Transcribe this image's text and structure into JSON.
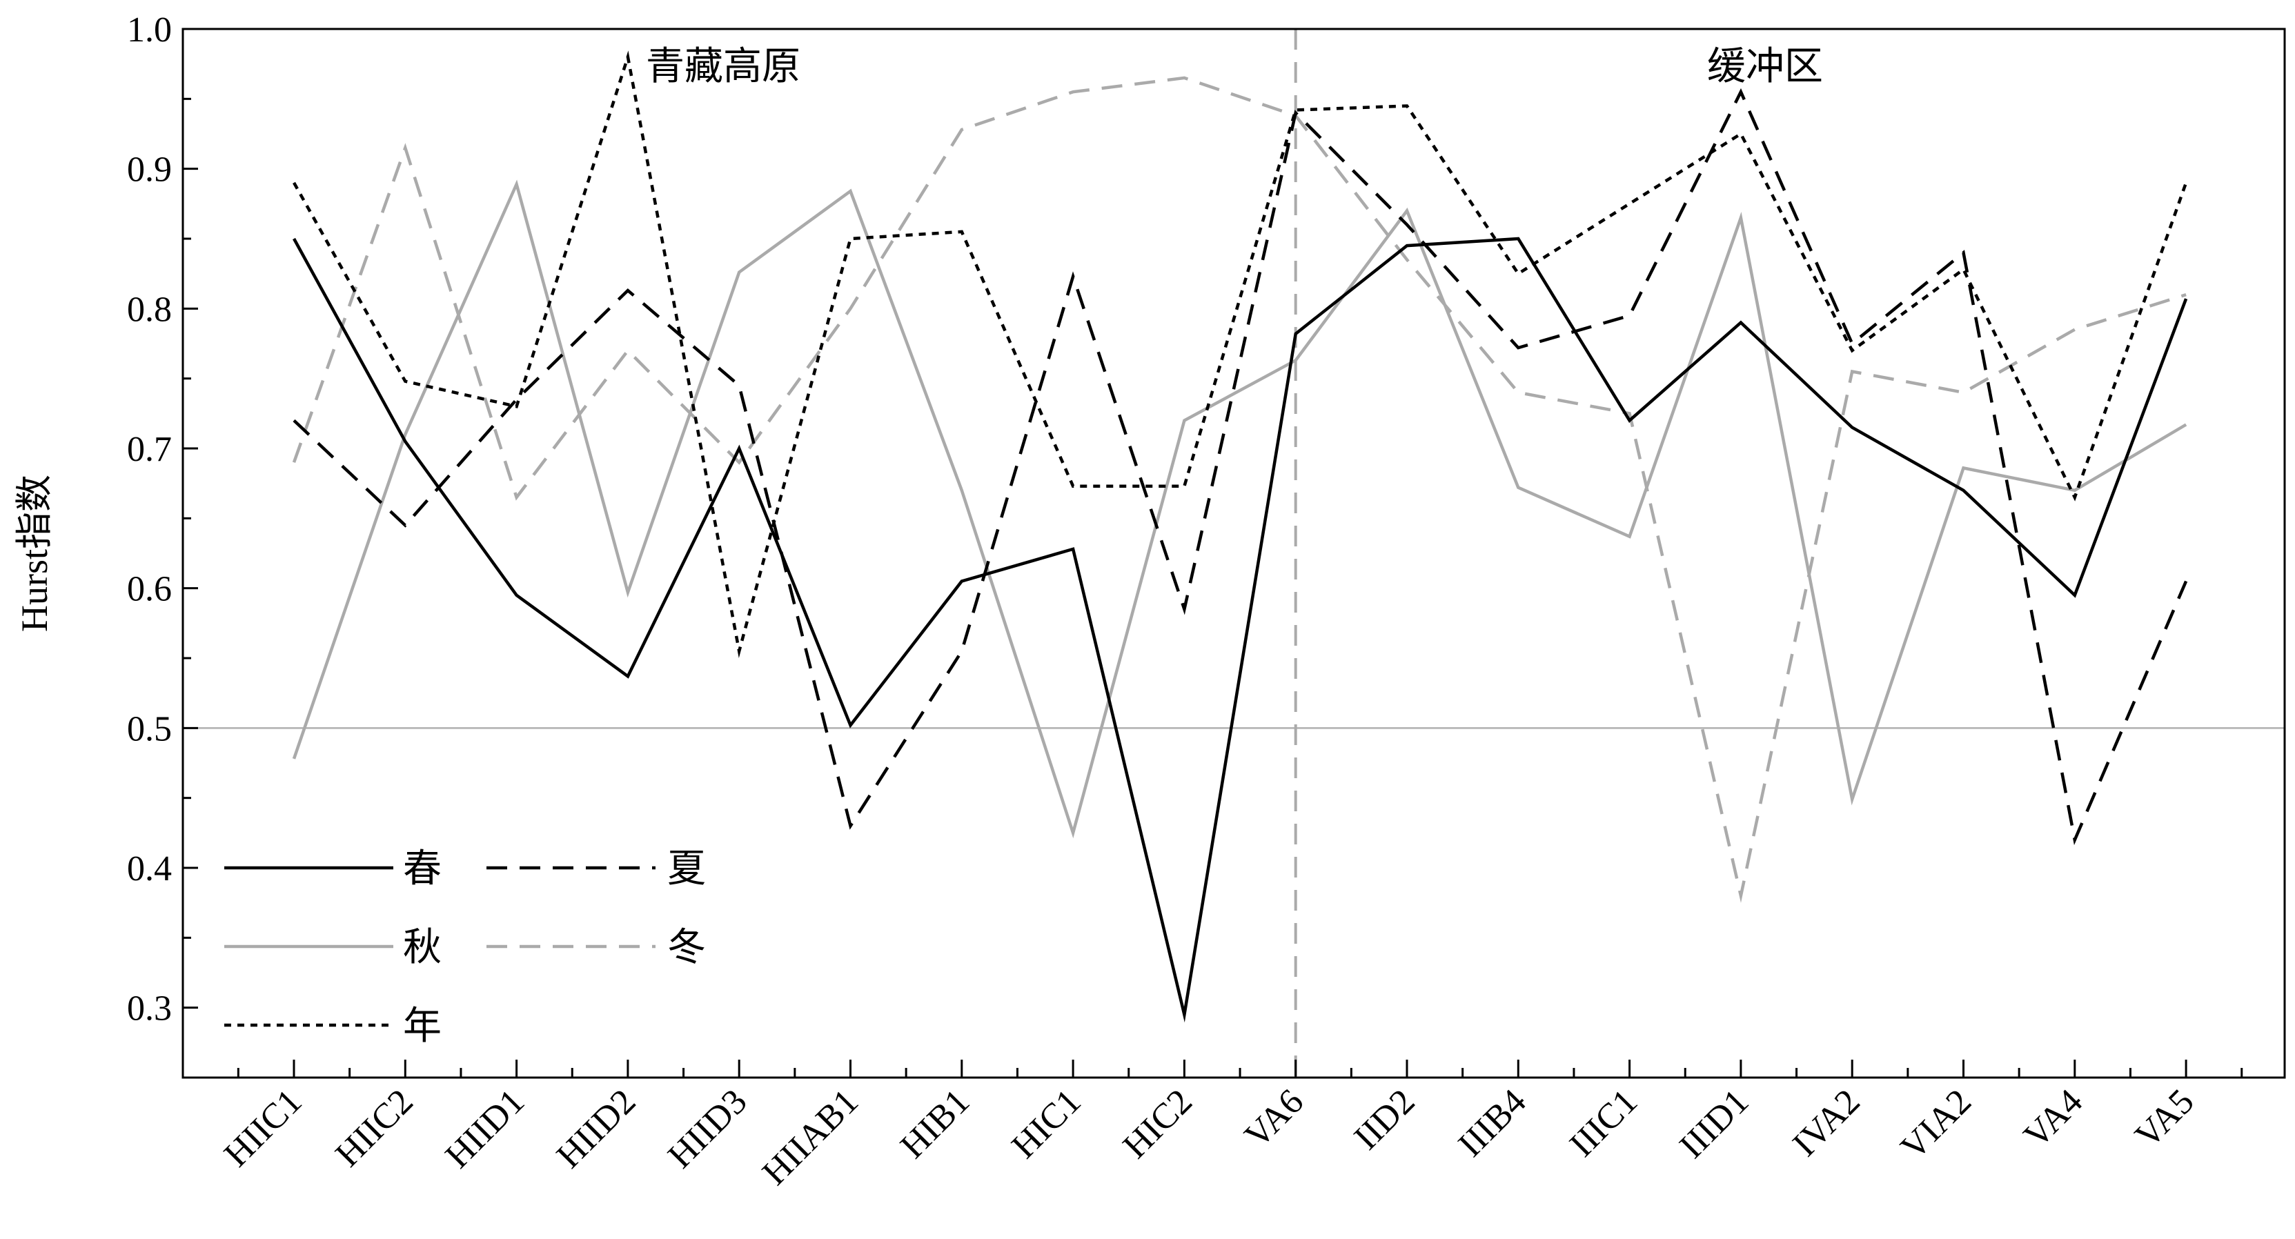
{
  "chart_data": {
    "type": "line",
    "ylabel": "Hurst指数",
    "xlabel": "",
    "ylim": [
      0.25,
      1.0
    ],
    "yticks": [
      "0.3",
      "0.4",
      "0.5",
      "0.6",
      "0.7",
      "0.8",
      "0.9",
      "1.0"
    ],
    "categories": [
      "HIIC1",
      "HIIC2",
      "HIID1",
      "HIID2",
      "HIID3",
      "HIIAB1",
      "HIB1",
      "HIC1",
      "HIC2",
      "VA6",
      "IID2",
      "IIIB4",
      "IIIC1",
      "IIID1",
      "IVA2",
      "VIA2",
      "VA4",
      "VA5"
    ],
    "reference_line": 0.5,
    "divider_after_index": 9,
    "regions": [
      {
        "label": "青藏高原"
      },
      {
        "label": "缓冲区"
      }
    ],
    "series": [
      {
        "name": "春",
        "color": "#000000",
        "dash": "solid",
        "values": [
          0.85,
          0.705,
          0.595,
          0.537,
          0.7,
          0.502,
          0.605,
          0.628,
          0.295,
          0.782,
          0.845,
          0.85,
          0.72,
          0.79,
          0.715,
          0.67,
          0.595,
          0.807
        ]
      },
      {
        "name": "夏",
        "color": "#000000",
        "dash": "dashed",
        "values": [
          0.72,
          0.645,
          0.735,
          0.813,
          0.745,
          0.43,
          0.555,
          0.823,
          0.585,
          0.94,
          0.86,
          0.772,
          0.795,
          0.955,
          0.775,
          0.84,
          0.42,
          0.605
        ]
      },
      {
        "name": "秋",
        "color": "#aaaaaa",
        "dash": "solid",
        "values": [
          0.478,
          0.71,
          0.889,
          0.597,
          0.826,
          0.884,
          0.67,
          0.425,
          0.72,
          0.763,
          0.87,
          0.672,
          0.637,
          0.865,
          0.449,
          0.686,
          0.67,
          0.717
        ]
      },
      {
        "name": "冬",
        "color": "#aaaaaa",
        "dash": "dashed",
        "values": [
          0.69,
          0.915,
          0.665,
          0.77,
          0.69,
          0.8,
          0.928,
          0.955,
          0.965,
          0.938,
          0.835,
          0.74,
          0.725,
          0.38,
          0.755,
          0.74,
          0.785,
          0.81
        ]
      },
      {
        "name": "年",
        "color": "#000000",
        "dash": "dotted",
        "values": [
          0.89,
          0.748,
          0.73,
          0.98,
          0.555,
          0.85,
          0.855,
          0.673,
          0.673,
          0.942,
          0.945,
          0.825,
          0.875,
          0.925,
          0.77,
          0.828,
          0.665,
          0.89
        ]
      }
    ],
    "legend": {
      "placement": "lower-left",
      "columns": 2
    },
    "grid": false
  }
}
